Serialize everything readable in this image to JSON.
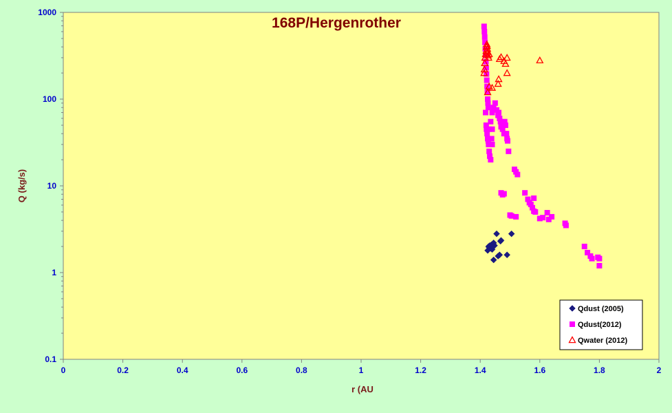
{
  "chart_data": {
    "type": "scatter",
    "title": "168P/Hergenrother",
    "xlabel": "r (AU",
    "ylabel": "Q (kg/s)",
    "xlim": [
      0,
      2
    ],
    "ylim": [
      0.1,
      1000
    ],
    "y_scale": "log",
    "x_ticks": [
      "0",
      "0.2",
      "0.4",
      "0.6",
      "0.8",
      "1",
      "1.2",
      "1.4",
      "1.6",
      "1.8",
      "2"
    ],
    "y_ticks": [
      "0.1",
      "1",
      "10",
      "100",
      "1000"
    ],
    "grid": false,
    "legend_position": "bottom-right",
    "colors": {
      "plot_background": "#ffff99",
      "page_background": "#ccffcc",
      "tick_labels": "#0000cc",
      "axis_titles": "#7a1a1a",
      "title": "#800000"
    },
    "series": [
      {
        "name": "Qdust (2005)",
        "marker": "diamond",
        "color": "#1a1a80",
        "points": [
          [
            1.425,
            1.8
          ],
          [
            1.428,
            2.0
          ],
          [
            1.43,
            1.95
          ],
          [
            1.432,
            2.05
          ],
          [
            1.435,
            1.9
          ],
          [
            1.438,
            2.1
          ],
          [
            1.44,
            1.85
          ],
          [
            1.442,
            2.0
          ],
          [
            1.445,
            2.2
          ],
          [
            1.448,
            2.05
          ],
          [
            1.455,
            2.8
          ],
          [
            1.46,
            1.55
          ],
          [
            1.465,
            1.6
          ],
          [
            1.468,
            2.3
          ],
          [
            1.47,
            2.35
          ],
          [
            1.445,
            1.4
          ],
          [
            1.49,
            1.6
          ],
          [
            1.505,
            2.8
          ]
        ]
      },
      {
        "name": "Qdust(2012)",
        "marker": "square",
        "color": "#ff00ff",
        "points": [
          [
            1.413,
            690
          ],
          [
            1.414,
            600
          ],
          [
            1.415,
            520
          ],
          [
            1.416,
            450
          ],
          [
            1.417,
            380
          ],
          [
            1.418,
            320
          ],
          [
            1.419,
            270
          ],
          [
            1.42,
            230
          ],
          [
            1.421,
            195
          ],
          [
            1.422,
            165
          ],
          [
            1.423,
            140
          ],
          [
            1.424,
            120
          ],
          [
            1.425,
            100
          ],
          [
            1.426,
            90
          ],
          [
            1.427,
            80
          ],
          [
            1.418,
            70
          ],
          [
            1.42,
            50
          ],
          [
            1.421,
            45
          ],
          [
            1.423,
            40
          ],
          [
            1.425,
            35
          ],
          [
            1.427,
            33
          ],
          [
            1.428,
            30
          ],
          [
            1.43,
            25
          ],
          [
            1.432,
            22
          ],
          [
            1.435,
            20
          ],
          [
            1.435,
            55
          ],
          [
            1.43,
            45
          ],
          [
            1.44,
            45
          ],
          [
            1.438,
            35
          ],
          [
            1.44,
            30
          ],
          [
            1.44,
            70
          ],
          [
            1.445,
            80
          ],
          [
            1.45,
            90
          ],
          [
            1.455,
            75
          ],
          [
            1.46,
            65
          ],
          [
            1.462,
            70
          ],
          [
            1.465,
            60
          ],
          [
            1.468,
            55
          ],
          [
            1.47,
            48
          ],
          [
            1.475,
            45
          ],
          [
            1.478,
            50
          ],
          [
            1.48,
            40
          ],
          [
            1.482,
            55
          ],
          [
            1.485,
            50
          ],
          [
            1.488,
            40
          ],
          [
            1.49,
            35
          ],
          [
            1.492,
            33
          ],
          [
            1.495,
            25
          ],
          [
            1.47,
            8.3
          ],
          [
            1.475,
            7.9
          ],
          [
            1.48,
            8.1
          ],
          [
            1.5,
            4.6
          ],
          [
            1.505,
            4.5
          ],
          [
            1.52,
            4.4
          ],
          [
            1.515,
            15.5
          ],
          [
            1.52,
            14.5
          ],
          [
            1.525,
            13.5
          ],
          [
            1.55,
            8.3
          ],
          [
            1.56,
            7.0
          ],
          [
            1.565,
            6.4
          ],
          [
            1.57,
            6.1
          ],
          [
            1.575,
            5.6
          ],
          [
            1.58,
            5.1
          ],
          [
            1.585,
            5.0
          ],
          [
            1.58,
            7.2
          ],
          [
            1.6,
            4.2
          ],
          [
            1.61,
            4.3
          ],
          [
            1.625,
            4.9
          ],
          [
            1.63,
            4.1
          ],
          [
            1.64,
            4.4
          ],
          [
            1.685,
            3.7
          ],
          [
            1.688,
            3.5
          ],
          [
            1.75,
            2.0
          ],
          [
            1.76,
            1.7
          ],
          [
            1.77,
            1.55
          ],
          [
            1.775,
            1.45
          ],
          [
            1.795,
            1.5
          ],
          [
            1.8,
            1.45
          ],
          [
            1.8,
            1.2
          ]
        ]
      },
      {
        "name": "Qwater (2012)",
        "marker": "triangle",
        "color": "#ff0000",
        "points": [
          [
            1.413,
            200
          ],
          [
            1.414,
            220
          ],
          [
            1.415,
            260
          ],
          [
            1.416,
            300
          ],
          [
            1.418,
            330
          ],
          [
            1.42,
            360
          ],
          [
            1.421,
            400
          ],
          [
            1.422,
            430
          ],
          [
            1.423,
            410
          ],
          [
            1.424,
            380
          ],
          [
            1.425,
            350
          ],
          [
            1.426,
            320
          ],
          [
            1.428,
            300
          ],
          [
            1.43,
            330
          ],
          [
            1.425,
            120
          ],
          [
            1.43,
            140
          ],
          [
            1.44,
            135
          ],
          [
            1.46,
            150
          ],
          [
            1.462,
            170
          ],
          [
            1.465,
            290
          ],
          [
            1.47,
            305
          ],
          [
            1.48,
            275
          ],
          [
            1.485,
            255
          ],
          [
            1.49,
            300
          ],
          [
            1.49,
            200
          ],
          [
            1.6,
            280
          ]
        ]
      }
    ]
  }
}
